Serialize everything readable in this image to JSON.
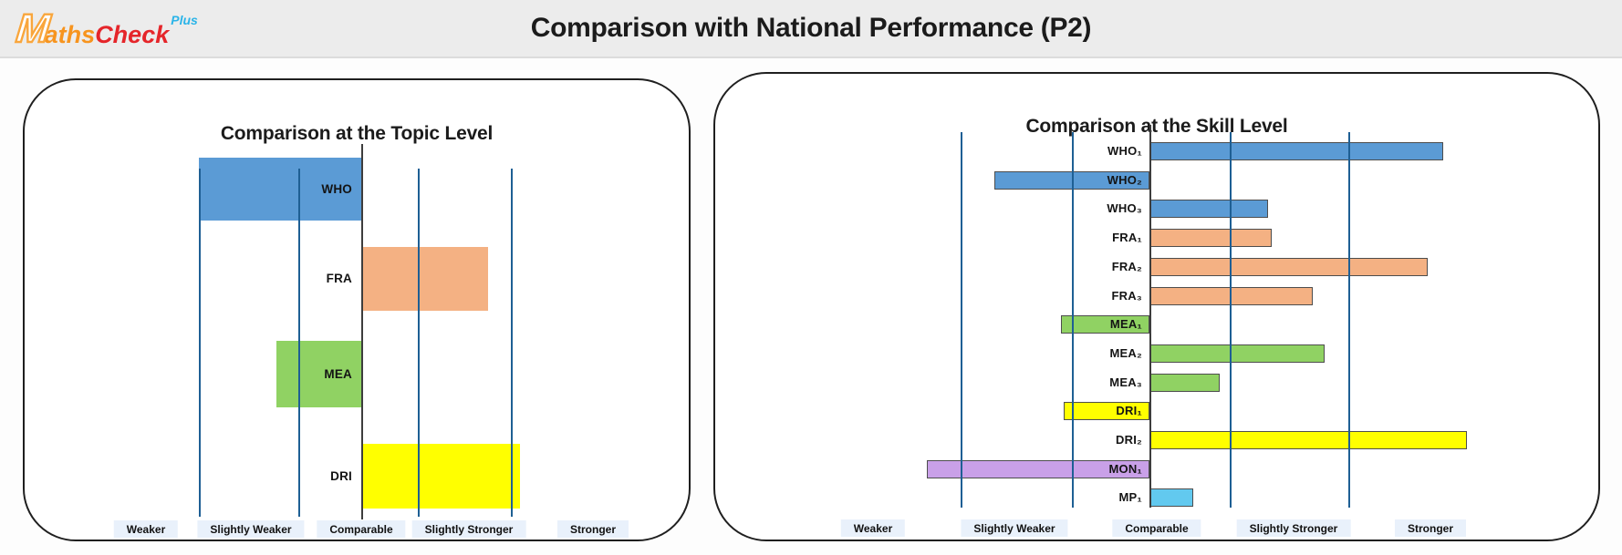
{
  "header": {
    "title": "Comparison with National Performance (P2)",
    "logo": {
      "initial": "M",
      "part1": "aths",
      "part2": "Check",
      "suffix": "Plus"
    }
  },
  "bands": [
    "Weaker",
    "Slightly Weaker",
    "Comparable",
    "Slightly Stronger",
    "Stronger"
  ],
  "colors": {
    "WHO": "#5b9bd5",
    "FRA": "#f4b183",
    "MEA": "#90d263",
    "DRI": "#ffff00",
    "MON": "#c9a0e8",
    "MP": "#62c9ef",
    "band_line": "#1e5f94",
    "center_line": "#3d3d3d",
    "band_label_bg": "#e9f1fb",
    "header_bg": "#ececec"
  },
  "chart_data": [
    {
      "type": "bar",
      "orientation": "horizontal-diverging",
      "title": "Comparison at the Topic Level",
      "unit": "performance relative to national average; 0 = national average, 1 unit = one band width, negative = weaker, positive = stronger",
      "bands": [
        "Weaker",
        "Slightly Weaker",
        "Comparable",
        "Slightly Stronger",
        "Stronger"
      ],
      "band_boundaries": [
        -1.5,
        -0.5,
        0.5,
        1.5
      ],
      "grid": "band boundary lines plus national-average centre line",
      "legend": "none",
      "series": [
        {
          "label": "WHO",
          "group": "WHO",
          "from": -1.5,
          "to": 0
        },
        {
          "label": "FRA",
          "group": "FRA",
          "from": 0,
          "to": 1.25
        },
        {
          "label": "MEA",
          "group": "MEA",
          "from": -0.72,
          "to": 0
        },
        {
          "label": "DRI",
          "group": "DRI",
          "from": 0,
          "to": 1.6
        }
      ]
    },
    {
      "type": "bar",
      "orientation": "horizontal-diverging",
      "title": "Comparison at the Skill Level",
      "unit": "performance relative to national average; 0 = national average, 1 unit = one band width, negative = weaker, positive = stronger",
      "bands": [
        "Weaker",
        "Slightly Weaker",
        "Comparable",
        "Slightly Stronger",
        "Stronger"
      ],
      "band_boundaries": [
        -1.5,
        -0.5,
        0.5,
        1.5
      ],
      "grid": "band boundary lines plus national-average centre line",
      "legend": "none",
      "series": [
        {
          "label": "WHO₁",
          "group": "WHO",
          "from": 0,
          "to": 2.3
        },
        {
          "label": "WHO₂",
          "group": "WHO",
          "from": -1.2,
          "to": 0
        },
        {
          "label": "WHO₃",
          "group": "WHO",
          "from": 0,
          "to": 0.82
        },
        {
          "label": "FRA₁",
          "group": "FRA",
          "from": 0,
          "to": 0.85
        },
        {
          "label": "FRA₂",
          "group": "FRA",
          "from": 0,
          "to": 2.17
        },
        {
          "label": "FRA₃",
          "group": "FRA",
          "from": 0,
          "to": 1.2
        },
        {
          "label": "MEA₁",
          "group": "MEA",
          "from": -0.6,
          "to": 0
        },
        {
          "label": "MEA₂",
          "group": "MEA",
          "from": 0,
          "to": 1.3
        },
        {
          "label": "MEA₃",
          "group": "MEA",
          "from": 0,
          "to": 0.44
        },
        {
          "label": "DRI₁",
          "group": "DRI",
          "from": -0.57,
          "to": 0
        },
        {
          "label": "DRI₂",
          "group": "DRI",
          "from": 0,
          "to": 2.5
        },
        {
          "label": "MON₁",
          "group": "MON",
          "from": -1.8,
          "to": 0
        },
        {
          "label": "MP₁",
          "group": "MP",
          "from": 0,
          "to": 0.27
        }
      ]
    }
  ]
}
